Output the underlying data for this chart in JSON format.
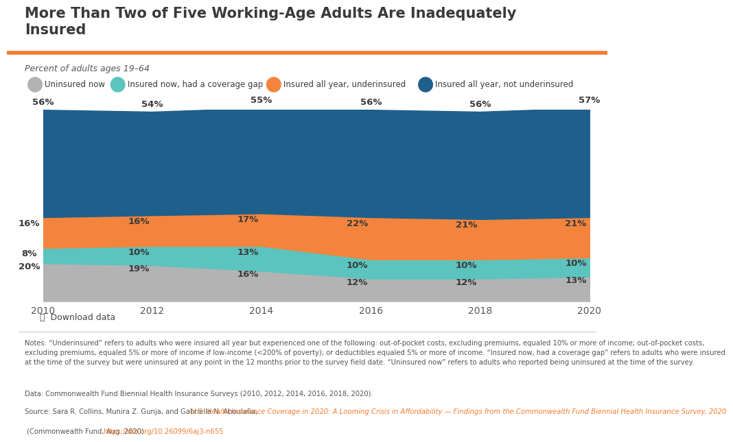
{
  "title": "More Than Two of Five Working-Age Adults Are Inadequately\nInsured",
  "subtitle": "Percent of adults ages 19–64",
  "years": [
    2010,
    2012,
    2014,
    2016,
    2018,
    2020
  ],
  "uninsured_now": [
    20,
    19,
    16,
    12,
    12,
    13
  ],
  "coverage_gap": [
    8,
    10,
    13,
    10,
    10,
    10
  ],
  "underinsured": [
    16,
    16,
    17,
    22,
    21,
    21
  ],
  "not_underinsured": [
    56,
    54,
    55,
    56,
    56,
    57
  ],
  "colors": {
    "uninsured_now": "#b3b3b3",
    "coverage_gap": "#5bc4bf",
    "underinsured": "#f4843d",
    "not_underinsured": "#1f5f8b"
  },
  "legend_labels": [
    "Uninsured now",
    "Insured now, had a coverage gap",
    "Insured all year, underinsured",
    "Insured all year, not underinsured"
  ],
  "orange_line_color": "#f47c30",
  "title_color": "#3a3a3a",
  "subtitle_color": "#555555",
  "label_color": "#3a3a3a",
  "tick_color": "#555555",
  "notes_text": "Notes: “Underinsured” refers to adults who were insured all year but experienced one of the following: out-of-pocket costs, excluding premiums, equaled 10% or more of income; out-of-pocket costs, excluding premiums, equaled 5% or more of income if low-income (<200% of poverty); or deductibles equaled 5% or more of income. “Insured now, had a coverage gap” refers to adults who were insured at the time of the survey but were uninsured at any point in the 12 months prior to the survey field date. “Uninsured now” refers to adults who reported being uninsured at the time of the survey.",
  "data_text": "Data: Commonwealth Fund Biennial Health Insurance Surveys (2010, 2012, 2014, 2016, 2018, 2020).",
  "source_plain": "Source: Sara R. Collins, Munira Z. Gunja, and Gabriella N. Aboulafia, ",
  "source_link": "U.S. Health Insurance Coverage in 2020: A Looming Crisis in Affordability — Findings from the Commonwealth Fund Biennial Health Insurance Survey, 2020",
  "source_end": " (Commonwealth Fund, Aug. 2020). ",
  "source_url": "https://doi.org/10.26099/6aj3-n655",
  "source_link_color": "#f47c30",
  "download_text": "Download data",
  "separator_color": "#cccccc"
}
